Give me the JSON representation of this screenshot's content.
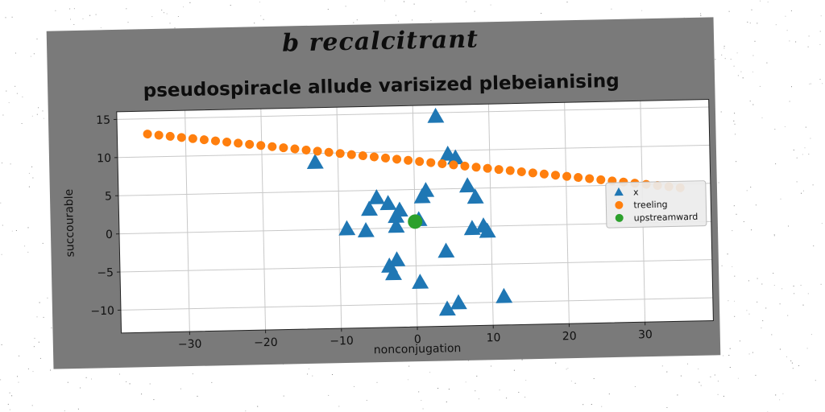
{
  "chart_data": {
    "type": "scatter",
    "suptitle": "b recalcitrant",
    "title": "pseudospiracle allude varisized plebeianising",
    "xlabel": "nonconjugation",
    "ylabel": "succourable",
    "xlim": [
      -39,
      39
    ],
    "ylim": [
      -13,
      16
    ],
    "xticks": [
      -30,
      -20,
      -10,
      0,
      10,
      20,
      30
    ],
    "yticks": [
      -10,
      -5,
      0,
      5,
      10,
      15
    ],
    "grid": true,
    "legend_position": "right",
    "series": [
      {
        "name": "x",
        "marker": "triangle",
        "color": "#1f77b4",
        "points": [
          [
            3,
            14.5
          ],
          [
            4.5,
            9.5
          ],
          [
            5.5,
            9
          ],
          [
            -13,
            8.8
          ],
          [
            7,
            5.3
          ],
          [
            1.5,
            4.8
          ],
          [
            1,
            4
          ],
          [
            8,
            3.8
          ],
          [
            -5,
            4
          ],
          [
            -3.5,
            3.2
          ],
          [
            -6,
            2.5
          ],
          [
            -2,
            2.3
          ],
          [
            -2.5,
            1.5
          ],
          [
            0.5,
            1
          ],
          [
            -9,
            0
          ],
          [
            -6.5,
            -0.3
          ],
          [
            -2.5,
            0.2
          ],
          [
            9,
            0
          ],
          [
            7.5,
            -0.3
          ],
          [
            9.5,
            -0.7
          ],
          [
            4,
            -3.2
          ],
          [
            -2.5,
            -4.2
          ],
          [
            -3.5,
            -5
          ],
          [
            -3,
            -6
          ],
          [
            0.5,
            -7.2
          ],
          [
            11.5,
            -9.3
          ],
          [
            5.5,
            -10
          ],
          [
            4,
            -10.8
          ]
        ]
      },
      {
        "name": "treeling",
        "marker": "circle",
        "color": "#ff7f0e",
        "x_range": [
          -35,
          35
        ],
        "y_range": [
          13,
          4.5
        ],
        "count": 48
      },
      {
        "name": "upstreamward",
        "marker": "circle",
        "color": "#2ca02c",
        "points": [
          [
            0,
            0.8
          ]
        ]
      }
    ]
  }
}
